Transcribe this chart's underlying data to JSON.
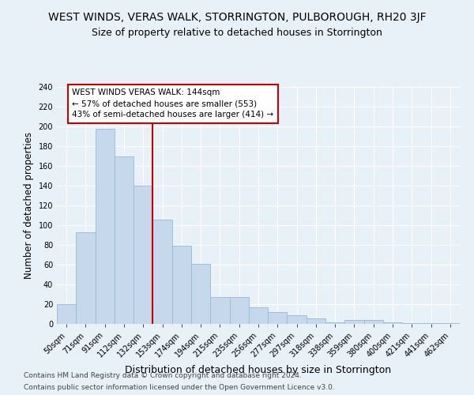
{
  "title": "WEST WINDS, VERAS WALK, STORRINGTON, PULBOROUGH, RH20 3JF",
  "subtitle": "Size of property relative to detached houses in Storrington",
  "xlabel": "Distribution of detached houses by size in Storrington",
  "ylabel": "Number of detached properties",
  "categories": [
    "50sqm",
    "71sqm",
    "91sqm",
    "112sqm",
    "132sqm",
    "153sqm",
    "174sqm",
    "194sqm",
    "215sqm",
    "235sqm",
    "256sqm",
    "277sqm",
    "297sqm",
    "318sqm",
    "338sqm",
    "359sqm",
    "380sqm",
    "400sqm",
    "421sqm",
    "441sqm",
    "462sqm"
  ],
  "values": [
    20,
    93,
    198,
    170,
    140,
    106,
    79,
    61,
    27,
    27,
    17,
    12,
    9,
    6,
    2,
    4,
    4,
    2,
    1,
    1,
    1
  ],
  "bar_color": "#c6d9ec",
  "bar_edgecolor": "#9ab8d4",
  "vline_color": "#cc0000",
  "annotation_text": "WEST WINDS VERAS WALK: 144sqm\n← 57% of detached houses are smaller (553)\n43% of semi-detached houses are larger (414) →",
  "annotation_box_edgecolor": "#cc0000",
  "ylim": [
    0,
    240
  ],
  "yticks": [
    0,
    20,
    40,
    60,
    80,
    100,
    120,
    140,
    160,
    180,
    200,
    220,
    240
  ],
  "footnote1": "Contains HM Land Registry data © Crown copyright and database right 2024.",
  "footnote2": "Contains public sector information licensed under the Open Government Licence v3.0.",
  "bg_color": "#e8f0f8",
  "grid_color": "#ffffff",
  "title_fontsize": 10,
  "subtitle_fontsize": 9,
  "tick_fontsize": 7,
  "ylabel_fontsize": 8.5,
  "xlabel_fontsize": 9,
  "footnote_fontsize": 6.5
}
